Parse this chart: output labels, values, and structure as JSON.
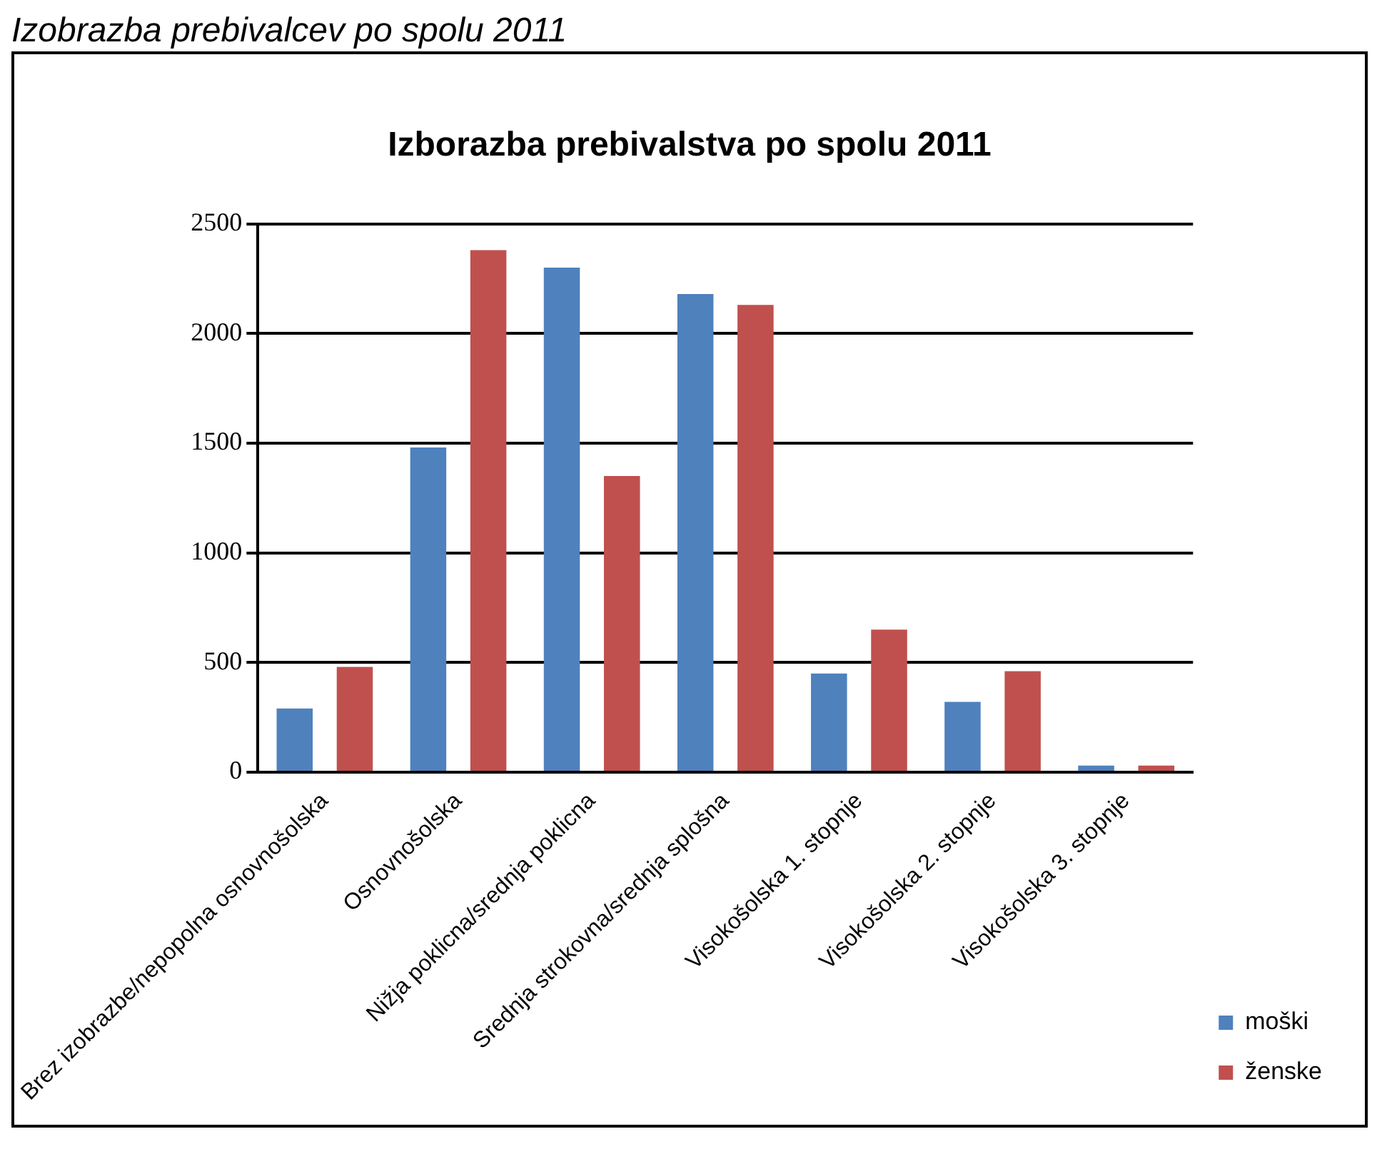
{
  "chart_data": {
    "type": "bar",
    "title": "Izborazba prebivalstva po spolu 2011",
    "annotations": [
      "Izobrazba prebivalcev po spolu 2011"
    ],
    "categories": [
      "Brez izobrazbe/nepopolna osnovnošolska",
      "Osnovnošolska",
      "Nižja poklicna/srednja poklicna",
      "Srednja strokovna/srednja splošna",
      "Visokošolska 1. stopnje",
      "Visokošolska 2. stopnje",
      "Visokošolska 3. stopnje"
    ],
    "series": [
      {
        "name": "moški",
        "color": "#4f81bd",
        "values": [
          290,
          1480,
          2300,
          2180,
          450,
          320,
          30
        ]
      },
      {
        "name": "ženske",
        "color": "#c0504d",
        "values": [
          480,
          2380,
          1350,
          2130,
          650,
          460,
          30
        ]
      }
    ],
    "ylim": [
      0,
      2500
    ],
    "yticks": [
      0,
      500,
      1000,
      1500,
      2000,
      2500
    ],
    "grid": "y",
    "legend": "bottom right"
  }
}
